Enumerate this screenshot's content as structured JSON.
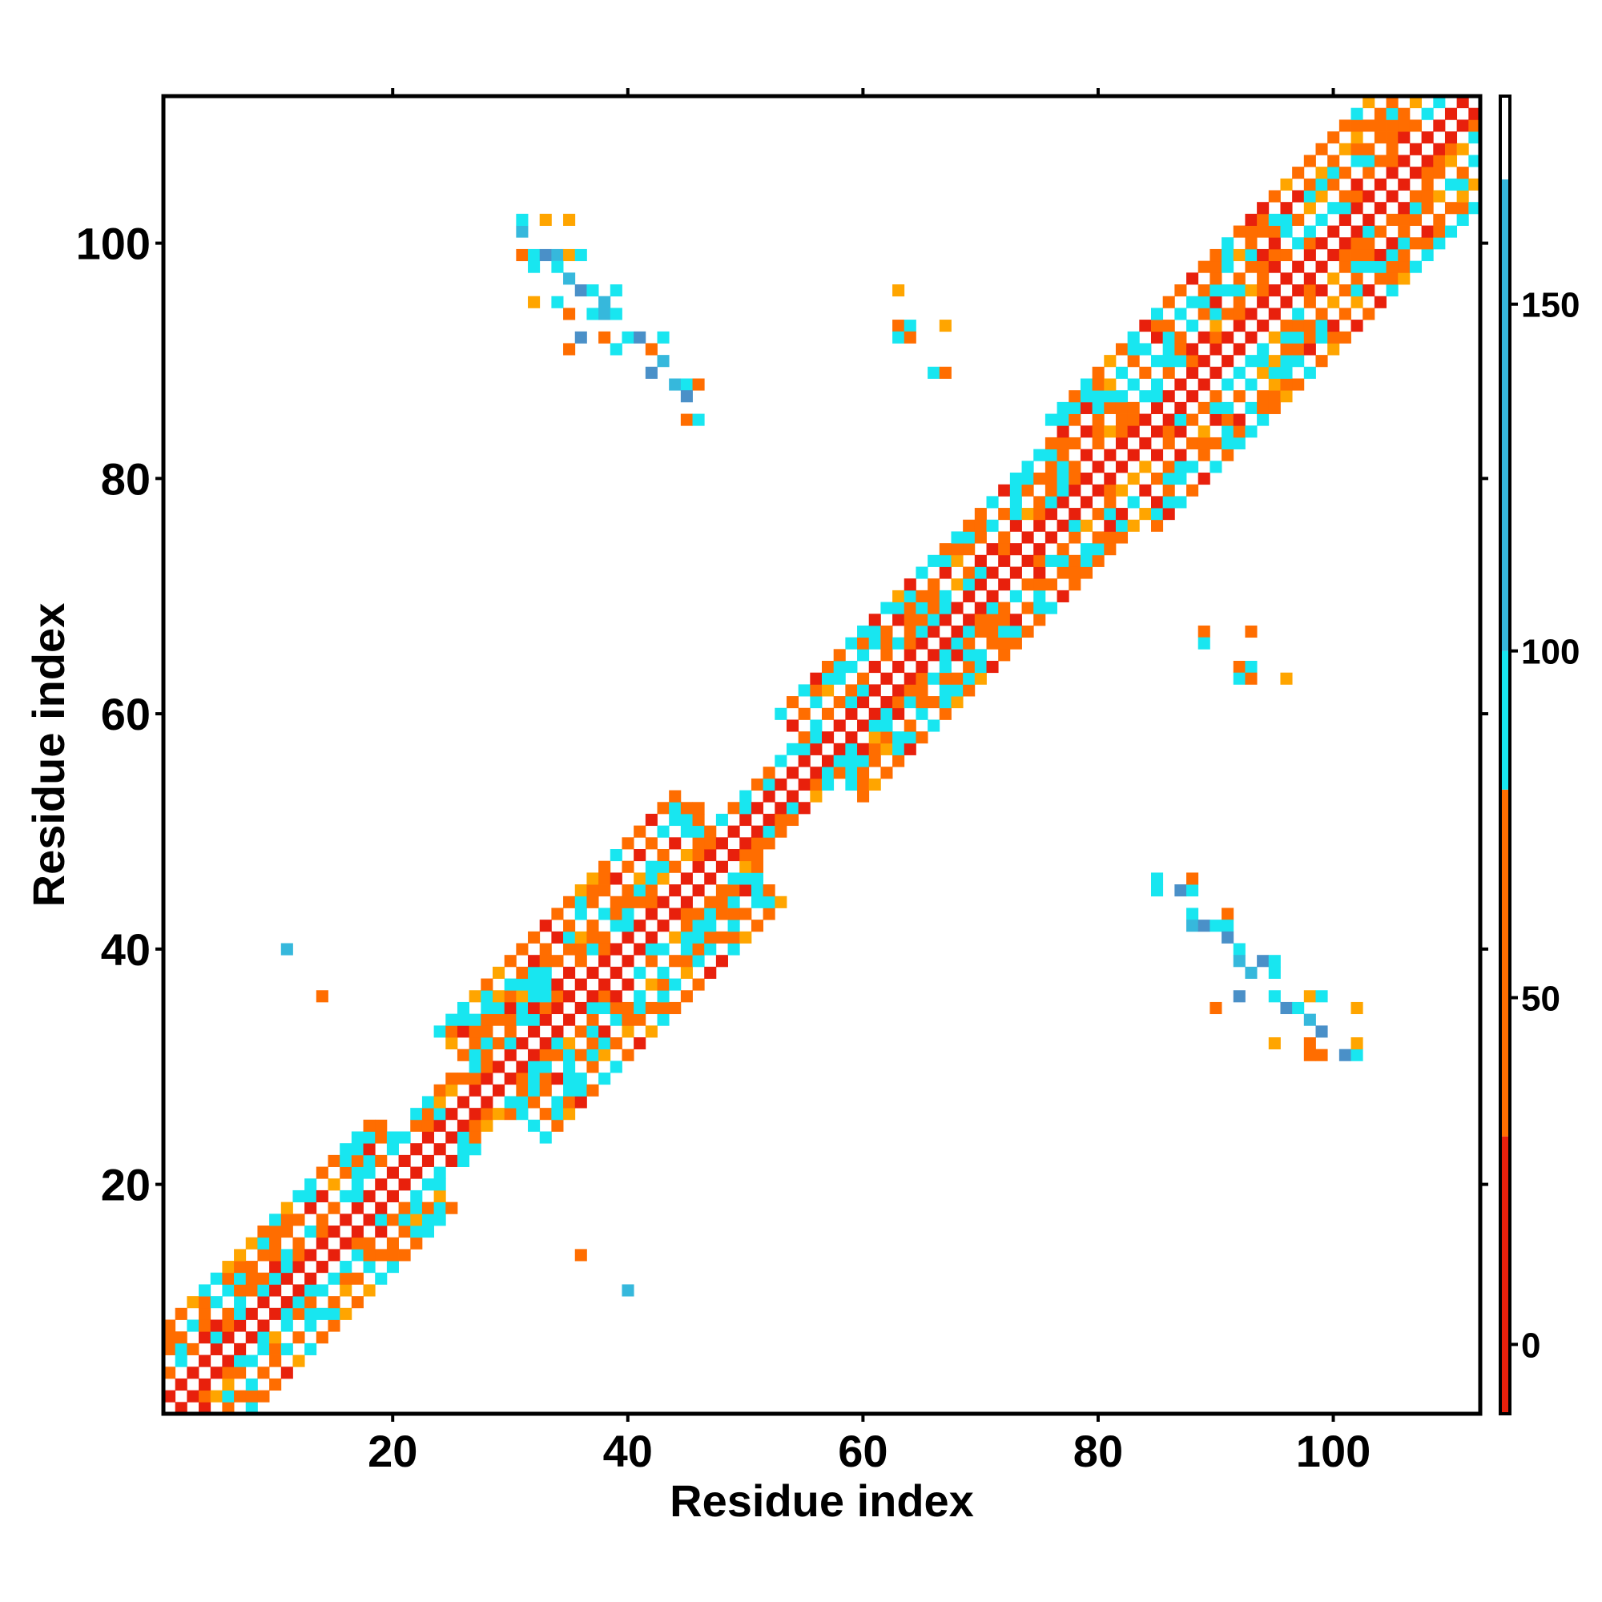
{
  "chart_data": {
    "type": "heatmap",
    "title": "",
    "xlabel": "Residue index",
    "ylabel": "Residue index",
    "xlim": [
      1,
      112
    ],
    "ylim": [
      1,
      112
    ],
    "x_ticks": [
      20,
      40,
      60,
      80,
      100
    ],
    "y_ticks": [
      20,
      40,
      60,
      80,
      100
    ],
    "colorbar": {
      "range": [
        -10,
        180
      ],
      "ticks": [
        0,
        50,
        100,
        150
      ],
      "colors": [
        {
          "from": -10,
          "to": 30,
          "color": "#e8200c"
        },
        {
          "from": 30,
          "to": 80,
          "color": "#ff6d00"
        },
        {
          "from": 80,
          "to": 100,
          "color": "#18e6f0"
        },
        {
          "from": 100,
          "to": 168,
          "color": "#36b8dc"
        },
        {
          "from": 168,
          "to": 180,
          "color": "#ffffff"
        }
      ]
    },
    "palette": [
      "#e8200c",
      "#ff6d00",
      "#18e6f0",
      "#36b8dc",
      "#ffa500",
      "#4a90c8"
    ],
    "diagonal_bands": [
      {
        "from": 1,
        "to": 22,
        "halfwidth": 7
      },
      {
        "from": 22,
        "to": 28,
        "halfwidth": 4
      },
      {
        "from": 28,
        "to": 49,
        "halfwidth": 9
      },
      {
        "from": 49,
        "to": 56,
        "halfwidth": 3
      },
      {
        "from": 56,
        "to": 80,
        "halfwidth": 7
      },
      {
        "from": 80,
        "to": 112,
        "halfwidth": 9
      }
    ],
    "sparse_contacts": [
      [
        31,
        101,
        3
      ],
      [
        31,
        102,
        2
      ],
      [
        33,
        102,
        4
      ],
      [
        35,
        102,
        4
      ],
      [
        31,
        99,
        1
      ],
      [
        32,
        99,
        2
      ],
      [
        32,
        98,
        2
      ],
      [
        33,
        99,
        5
      ],
      [
        34,
        99,
        3
      ],
      [
        35,
        99,
        4
      ],
      [
        36,
        99,
        2
      ],
      [
        34,
        98,
        2
      ],
      [
        35,
        97,
        3
      ],
      [
        36,
        96,
        5
      ],
      [
        37,
        96,
        2
      ],
      [
        38,
        95,
        3
      ],
      [
        39,
        96,
        2
      ],
      [
        32,
        95,
        4
      ],
      [
        34,
        95,
        2
      ],
      [
        35,
        94,
        1
      ],
      [
        37,
        94,
        2
      ],
      [
        38,
        94,
        3
      ],
      [
        39,
        94,
        2
      ],
      [
        36,
        92,
        5
      ],
      [
        35,
        91,
        1
      ],
      [
        38,
        92,
        1
      ],
      [
        39,
        91,
        2
      ],
      [
        40,
        92,
        2
      ],
      [
        41,
        92,
        5
      ],
      [
        42,
        91,
        1
      ],
      [
        43,
        92,
        2
      ],
      [
        42,
        89,
        5
      ],
      [
        43,
        90,
        3
      ],
      [
        44,
        88,
        3
      ],
      [
        45,
        88,
        2
      ],
      [
        46,
        88,
        1
      ],
      [
        45,
        87,
        5
      ],
      [
        45,
        85,
        1
      ],
      [
        46,
        85,
        2
      ],
      [
        63,
        96,
        4
      ],
      [
        63,
        93,
        1
      ],
      [
        63,
        92,
        2
      ],
      [
        64,
        93,
        2
      ],
      [
        64,
        92,
        1
      ],
      [
        67,
        93,
        4
      ],
      [
        66,
        89,
        2
      ],
      [
        67,
        89,
        1
      ],
      [
        85,
        45,
        2
      ],
      [
        85,
        46,
        2
      ],
      [
        87,
        45,
        5
      ],
      [
        88,
        45,
        2
      ],
      [
        88,
        46,
        1
      ],
      [
        88,
        43,
        2
      ],
      [
        88,
        42,
        3
      ],
      [
        89,
        42,
        5
      ],
      [
        90,
        42,
        2
      ],
      [
        91,
        43,
        1
      ],
      [
        91,
        42,
        2
      ],
      [
        91,
        41,
        5
      ],
      [
        92,
        40,
        2
      ],
      [
        92,
        39,
        3
      ],
      [
        93,
        38,
        3
      ],
      [
        94,
        39,
        5
      ],
      [
        95,
        39,
        2
      ],
      [
        95,
        38,
        2
      ],
      [
        90,
        35,
        1
      ],
      [
        92,
        36,
        5
      ],
      [
        95,
        36,
        2
      ],
      [
        96,
        35,
        5
      ],
      [
        97,
        35,
        2
      ],
      [
        98,
        36,
        4
      ],
      [
        99,
        36,
        2
      ],
      [
        98,
        34,
        3
      ],
      [
        99,
        33,
        5
      ],
      [
        95,
        32,
        4
      ],
      [
        98,
        32,
        1
      ],
      [
        98,
        31,
        1
      ],
      [
        99,
        31,
        1
      ],
      [
        101,
        31,
        5
      ],
      [
        102,
        31,
        2
      ],
      [
        102,
        32,
        4
      ],
      [
        102,
        35,
        4
      ],
      [
        89,
        67,
        1
      ],
      [
        89,
        66,
        2
      ],
      [
        93,
        67,
        1
      ],
      [
        92,
        64,
        1
      ],
      [
        92,
        63,
        2
      ],
      [
        93,
        64,
        2
      ],
      [
        93,
        63,
        1
      ],
      [
        96,
        63,
        4
      ],
      [
        11,
        40,
        3
      ],
      [
        14,
        36,
        1
      ],
      [
        36,
        14,
        1
      ],
      [
        40,
        11,
        3
      ]
    ]
  }
}
